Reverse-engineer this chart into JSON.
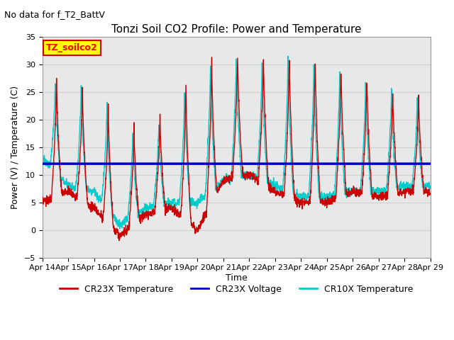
{
  "title": "Tonzi Soil CO2 Profile: Power and Temperature",
  "subtitle": "No data for f_T2_BattV",
  "ylabel": "Power (V) / Temperature (C)",
  "xlabel": "Time",
  "ylim": [
    -5,
    35
  ],
  "yticks": [
    -5,
    0,
    5,
    10,
    15,
    20,
    25,
    30,
    35
  ],
  "xtick_labels": [
    "Apr 14",
    "Apr 15",
    "Apr 16",
    "Apr 17",
    "Apr 18",
    "Apr 19",
    "Apr 20",
    "Apr 21",
    "Apr 22",
    "Apr 23",
    "Apr 24",
    "Apr 25",
    "Apr 26",
    "Apr 27",
    "Apr 28",
    "Apr 29"
  ],
  "voltage_level": 12.0,
  "legend_box_label": "TZ_soilco2",
  "legend_box_color": "#ffff00",
  "legend_box_border": "#cc0000",
  "cr23x_temp_color": "#cc0000",
  "cr23x_voltage_color": "#0000cc",
  "cr10x_temp_color": "#00cccc",
  "bg_color": "#ffffff",
  "grid_color": "#d0d0d0",
  "figsize": [
    6.4,
    4.8
  ],
  "dpi": 100
}
